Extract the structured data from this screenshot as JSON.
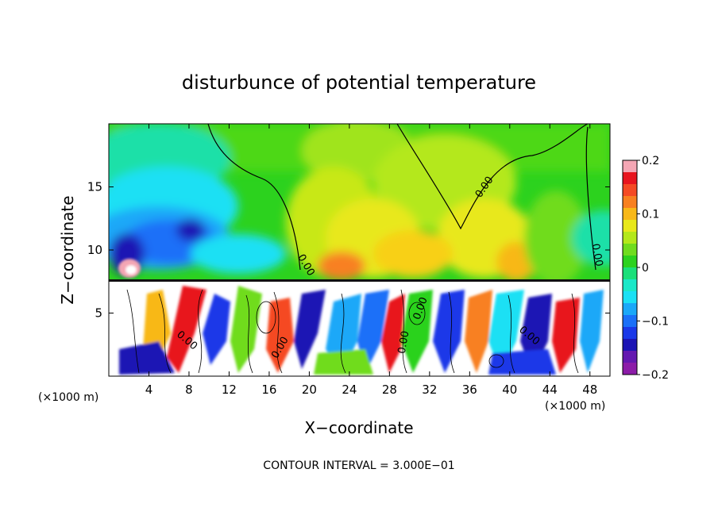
{
  "chart_data": {
    "type": "heatmap",
    "title": "disturbunce of potential temperature",
    "xlabel": "X−coordinate",
    "ylabel": "Z−coordinate",
    "x_unit_label": "(×1000 m)",
    "x_unit_label_right": "(×1000 m)",
    "xlim": [
      0,
      50
    ],
    "ylim": [
      0,
      20
    ],
    "x_ticks": [
      4,
      8,
      12,
      16,
      20,
      24,
      28,
      32,
      36,
      40,
      44,
      48
    ],
    "x_tick_labels": [
      "4",
      "8",
      "12",
      "16",
      "20",
      "24",
      "28",
      "32",
      "36",
      "40",
      "44",
      "48"
    ],
    "y_ticks": [
      5,
      10,
      15
    ],
    "y_tick_labels": [
      "5",
      "10",
      "15"
    ],
    "colorbar": {
      "range": [
        -0.2,
        0.2
      ],
      "ticks": [
        0.2,
        0.1,
        0,
        -0.1,
        -0.2
      ],
      "tick_labels": [
        "0.2",
        "0.1",
        "0",
        "−0.1",
        "−0.2"
      ],
      "colors": [
        "#f4a6b4",
        "#e8141e",
        "#f54a24",
        "#f88020",
        "#f8b818",
        "#e8e81a",
        "#b4e81a",
        "#70dc1e",
        "#2cd21e",
        "#1ae07a",
        "#1ae8c8",
        "#1ae0f4",
        "#1aa8f8",
        "#1a70f8",
        "#1a38e8",
        "#1c14b4",
        "#6418b0",
        "#8c1ca8"
      ]
    },
    "contour_labels": [
      "0.00",
      "0.00",
      "0.00",
      "0.00",
      "0.00",
      "0.00",
      "0.00",
      "0.00"
    ],
    "footer": "CONTOUR INTERVAL = 3.000E−01"
  }
}
